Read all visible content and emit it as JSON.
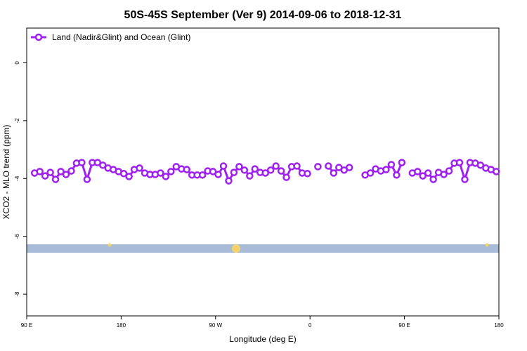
{
  "chart_data": {
    "type": "line",
    "title": "50S-45S September (Ver 9)   2014-09-06 to 2018-12-31",
    "xlabel": "Longitude (deg E)",
    "ylabel": "XCO2 - MLO trend (ppm)",
    "x": [
      97.5,
      102.5,
      107.5,
      112.5,
      117.5,
      122.5,
      127.5,
      132.5,
      137.5,
      142.5,
      147.5,
      152.5,
      157.5,
      162.5,
      167.5,
      172.5,
      177.5,
      182.5,
      187.5,
      192.5,
      197.5,
      202.5,
      207.5,
      212.5,
      217.5,
      222.5,
      227.5,
      232.5,
      237.5,
      242.5,
      247.5,
      252.5,
      257.5,
      262.5,
      267.5,
      272.5,
      277.5,
      282.5,
      287.5,
      292.5,
      297.5,
      302.5,
      307.5,
      312.5,
      317.5,
      322.5,
      327.5,
      332.5,
      337.5,
      342.5,
      347.5,
      352.5,
      357.5,
      362.5,
      367.5,
      372.5,
      377.5,
      382.5,
      387.5,
      392.5,
      397.5,
      402.5,
      407.5,
      412.5,
      417.5,
      422.5,
      427.5,
      432.5,
      437.5,
      442.5,
      447.5,
      452.5,
      457.5,
      462.5,
      467.5,
      472.5,
      477.5,
      482.5,
      487.5,
      492.5,
      497.5,
      502.5,
      507.5,
      512.5,
      517.5,
      522.5,
      527.5,
      532.5,
      537.5
    ],
    "series": [
      {
        "name": "Land (Nadir&Glint) and Ocean (Glint)",
        "color": "#a020f0",
        "values": [
          -3.81,
          -3.76,
          -3.91,
          -3.79,
          -4.03,
          -3.76,
          -3.86,
          -3.74,
          -3.47,
          -3.45,
          -4.03,
          -3.45,
          -3.45,
          -3.54,
          -3.64,
          -3.69,
          -3.76,
          -3.83,
          -3.93,
          -3.69,
          -3.64,
          -3.81,
          -3.86,
          -3.86,
          -3.81,
          -3.93,
          -3.76,
          -3.59,
          -3.67,
          -3.69,
          -3.88,
          -3.88,
          -3.88,
          -3.74,
          -3.76,
          -3.86,
          -3.57,
          -4.08,
          -3.79,
          -3.59,
          -3.71,
          -3.91,
          -3.67,
          -3.79,
          -3.81,
          -3.71,
          -3.57,
          -3.74,
          -3.96,
          -3.59,
          -3.57,
          -3.81,
          -3.83,
          null,
          -3.59,
          null,
          -3.57,
          -3.81,
          -3.62,
          -3.71,
          -3.62,
          null,
          null,
          -3.88,
          -3.81,
          -3.67,
          -3.74,
          -3.69,
          -3.52,
          -3.88,
          -3.45,
          null,
          -3.81,
          -3.76,
          -3.91,
          -3.81,
          -4.03,
          -3.79,
          -3.86,
          -3.74,
          -3.47,
          -3.45,
          -4.03,
          -3.45,
          -3.47,
          -3.54,
          -3.64,
          -3.69,
          -3.76
        ]
      }
    ],
    "xlim": [
      90,
      540
    ],
    "xticks": [
      {
        "value": 90,
        "label": "90 E"
      },
      180,
      {
        "value": 270,
        "label": "90 W"
      },
      {
        "value": 360,
        "label": "0"
      },
      {
        "value": 450,
        "label": "90 E"
      },
      {
        "value": 540,
        "label": "180"
      }
    ],
    "ylim": [
      -8.75,
      1.2
    ],
    "yticks": [
      0,
      -2,
      -4,
      -6,
      -8
    ],
    "grid": false,
    "legend": "top-left"
  }
}
